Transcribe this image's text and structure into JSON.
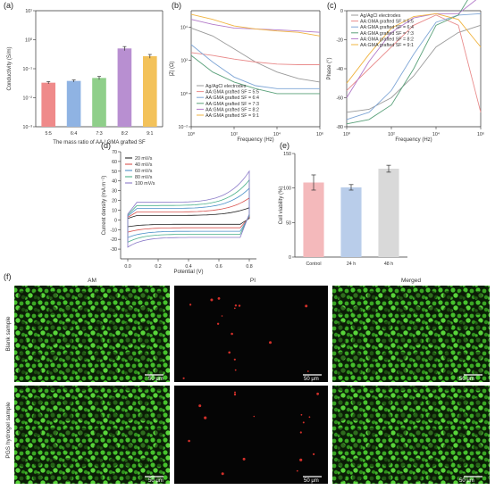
{
  "figure": {
    "panels": [
      "(a)",
      "(b)",
      "(c)",
      "(d)",
      "(e)",
      "(f)"
    ]
  },
  "chart_data": [
    {
      "id": "a",
      "type": "bar",
      "categories": [
        "5:5",
        "6:4",
        "7:3",
        "8:2",
        "9:1"
      ],
      "values": [
        0.033,
        0.038,
        0.048,
        0.5,
        0.27
      ],
      "errors": [
        0.003,
        0.003,
        0.006,
        0.08,
        0.04
      ],
      "colors": [
        "#ef8a8a",
        "#8fb3e3",
        "#8fcf8a",
        "#b88fd1",
        "#f3c25a"
      ],
      "ylabel": "Conductivity (S/m)",
      "xlabel": "The mass ratio of AA / GMA grafted SF",
      "yscale": "log",
      "ylim": [
        0.001,
        10
      ],
      "yticks": [
        "10⁻³",
        "10⁻²",
        "10⁻¹",
        "10⁰",
        "10¹"
      ]
    },
    {
      "id": "b",
      "type": "line",
      "xscale": "log",
      "yscale": "log",
      "xlim": [
        1,
        1000000
      ],
      "ylim": [
        0.01,
        100000
      ],
      "xlabel": "Frequency (Hz)",
      "ylabel": "|Z| (Ω)",
      "xticks": [
        "10⁰",
        "10²",
        "10⁴",
        "10⁶"
      ],
      "yticks": [
        "10⁻²",
        "10⁰",
        "10²",
        "10⁴"
      ],
      "legend_position": "bottom-left",
      "series": [
        {
          "name": "Ag/AgCl electrodes",
          "color": "#9a9a9a",
          "x": [
            1,
            10,
            100,
            1000,
            10000,
            100000,
            1000000
          ],
          "y": [
            9000,
            3000,
            500,
            80,
            20,
            8,
            5
          ]
        },
        {
          "name": "AA:GMA grafted SF = 5:5",
          "color": "#e98b8b",
          "x": [
            1,
            10,
            100,
            1000,
            10000,
            100000,
            1000000
          ],
          "y": [
            300,
            200,
            120,
            80,
            60,
            55,
            55
          ]
        },
        {
          "name": "AA:GMA grafted SF = 6:4",
          "color": "#7fa6d6",
          "x": [
            1,
            10,
            100,
            1000,
            10000,
            100000,
            1000000
          ],
          "y": [
            900,
            80,
            10,
            3,
            2,
            2,
            2
          ]
        },
        {
          "name": "AA:GMA grafted SF = 7:3",
          "color": "#5aa17a",
          "x": [
            1,
            10,
            100,
            1000,
            10000,
            100000,
            1000000
          ],
          "y": [
            200,
            20,
            5,
            2,
            1,
            1,
            1
          ]
        },
        {
          "name": "AA:GMA grafted SF = 8:2",
          "color": "#b37ac9",
          "x": [
            1,
            10,
            100,
            1000,
            10000,
            100000,
            1000000
          ],
          "y": [
            30000,
            15000,
            9000,
            8000,
            7000,
            6000,
            5000
          ]
        },
        {
          "name": "AA:GMA grafted SF = 9:1",
          "color": "#f0b441",
          "x": [
            1,
            10,
            100,
            1000,
            10000,
            100000,
            1000000
          ],
          "y": [
            60000,
            30000,
            12000,
            8000,
            6000,
            5000,
            3000
          ]
        }
      ]
    },
    {
      "id": "c",
      "type": "line",
      "xscale": "log",
      "xlim": [
        1,
        1000000
      ],
      "ylim": [
        -80,
        0
      ],
      "xlabel": "Frequency (Hz)",
      "ylabel": "Phase (°)",
      "xticks": [
        "10⁰",
        "10²",
        "10⁴",
        "10⁶"
      ],
      "yticks": [
        "0",
        "-20",
        "-40",
        "-60",
        "-80"
      ],
      "legend_position": "top-left",
      "series": [
        {
          "name": "Ag/AgCl electrodes",
          "color": "#9a9a9a",
          "x": [
            1,
            10,
            100,
            1000,
            10000,
            100000,
            1000000
          ],
          "y": [
            -70,
            -68,
            -60,
            -45,
            -25,
            -15,
            -10
          ]
        },
        {
          "name": "AA:GMA grafted SF = 5:5",
          "color": "#e98b8b",
          "x": [
            1,
            10,
            100,
            1000,
            10000,
            100000,
            1000000
          ],
          "y": [
            -55,
            -40,
            -25,
            -10,
            -3,
            -10,
            -70
          ]
        },
        {
          "name": "AA:GMA grafted SF = 6:4",
          "color": "#7fa6d6",
          "x": [
            1,
            10,
            100,
            1000,
            10000,
            100000,
            1000000
          ],
          "y": [
            -75,
            -70,
            -55,
            -30,
            -8,
            -3,
            -2
          ]
        },
        {
          "name": "AA:GMA grafted SF = 7:3",
          "color": "#5aa17a",
          "x": [
            1,
            10,
            100,
            1000,
            10000,
            100000,
            1000000
          ],
          "y": [
            -78,
            -75,
            -65,
            -40,
            -10,
            -3,
            22
          ]
        },
        {
          "name": "AA:GMA grafted SF = 8:2",
          "color": "#b37ac9",
          "x": [
            1,
            10,
            100,
            1000,
            10000,
            100000,
            1000000
          ],
          "y": [
            -60,
            -35,
            -15,
            -5,
            -2,
            -2,
            10
          ]
        },
        {
          "name": "AA:GMA grafted SF = 9:1",
          "color": "#f0b441",
          "x": [
            1,
            10,
            100,
            1000,
            10000,
            100000,
            1000000
          ],
          "y": [
            -50,
            -30,
            -12,
            -4,
            -2,
            -6,
            -25
          ]
        }
      ]
    },
    {
      "id": "d",
      "type": "line",
      "xlim": [
        0,
        0.8
      ],
      "ylim": [
        -40,
        70
      ],
      "xlabel": "Potential (V)",
      "ylabel": "Current density (mA m⁻²)",
      "xticks": [
        "0.0",
        "0.2",
        "0.4",
        "0.6",
        "0.8"
      ],
      "yticks": [
        "-30",
        "-20",
        "-10",
        "0",
        "10",
        "20",
        "30",
        "40",
        "50",
        "60",
        "70"
      ],
      "legend_position": "top-left",
      "series": [
        {
          "name": "20 mV/s",
          "color": "#222222",
          "scale": 0.25
        },
        {
          "name": "40 mV/s",
          "color": "#d9534f",
          "scale": 0.45
        },
        {
          "name": "60 mV/s",
          "color": "#4a90c8",
          "scale": 0.65
        },
        {
          "name": "80 mV/s",
          "color": "#4bb08a",
          "scale": 0.82
        },
        {
          "name": "100 mV/s",
          "color": "#8a7ac8",
          "scale": 1.0
        }
      ]
    },
    {
      "id": "e",
      "type": "bar",
      "categories": [
        "Control",
        "24 h",
        "48 h"
      ],
      "values": [
        108,
        101,
        128
      ],
      "errors": [
        11,
        4,
        5
      ],
      "colors": [
        "#f4b9bb",
        "#b9cdea",
        "#d9d9d9"
      ],
      "ylabel": "Cell viability (%)",
      "ylim": [
        0,
        150
      ],
      "yticks": [
        "0",
        "50",
        "100",
        "150"
      ]
    }
  ],
  "micrographs": {
    "columns": [
      "AM",
      "PI",
      "Merged"
    ],
    "rows": [
      "Blank sample",
      "PGS hydrogel sample"
    ],
    "scale_bar": "50 μm"
  }
}
